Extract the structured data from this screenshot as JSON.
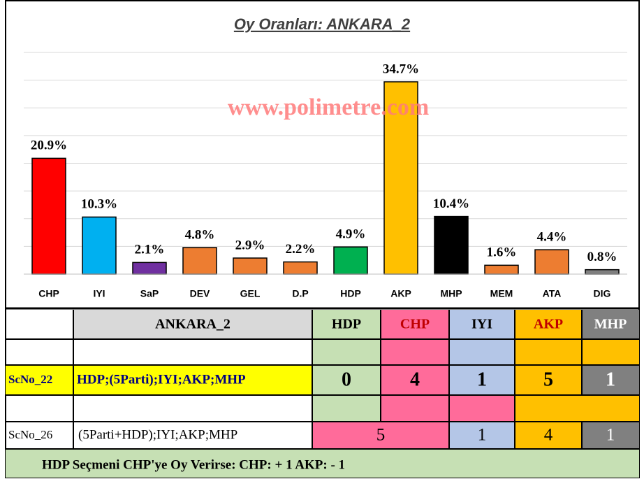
{
  "chart_data": {
    "type": "bar",
    "title": "Oy Oranları: ANKARA_2",
    "watermark": "www.polimetre.com",
    "categories": [
      "CHP",
      "IYI",
      "SaP",
      "DEV",
      "GEL",
      "D.P",
      "HDP",
      "AKP",
      "MHP",
      "MEM",
      "ATA",
      "DIG"
    ],
    "values": [
      20.9,
      10.3,
      2.1,
      4.8,
      2.9,
      2.2,
      4.9,
      34.7,
      10.4,
      1.6,
      4.4,
      0.8
    ],
    "value_labels": [
      "20.9%",
      "10.3%",
      "2.1%",
      "4.8%",
      "2.9%",
      "2.2%",
      "4.9%",
      "34.7%",
      "10.4%",
      "1.6%",
      "4.4%",
      "0.8%"
    ],
    "colors": [
      "#ff0000",
      "#00b0f0",
      "#7030a0",
      "#ed7d31",
      "#ed7d31",
      "#ed7d31",
      "#00b050",
      "#ffc000",
      "#000000",
      "#ed7d31",
      "#ed7d31",
      "#7f7f7f"
    ],
    "ylim": [
      0,
      40
    ],
    "yticks": [
      0,
      5,
      10,
      15,
      20,
      25,
      30,
      35,
      40
    ],
    "grid": true
  },
  "table": {
    "header": [
      "ANKARA_2",
      "HDP",
      "CHP",
      "IYI",
      "AKP",
      "MHP"
    ],
    "rows": [
      [
        "ScNo_22",
        "HDP;(5Parti);IYI;AKP;MHP",
        "0",
        "4",
        "1",
        "5",
        "1"
      ],
      [
        "ScNo_26",
        "(5Parti+HDP);IYI;AKP;MHP",
        "5",
        "1",
        "4",
        "1"
      ]
    ],
    "footer": "HDP Seçmeni CHP'ye Oy Verirse: CHP: + 1  AKP: - 1"
  }
}
